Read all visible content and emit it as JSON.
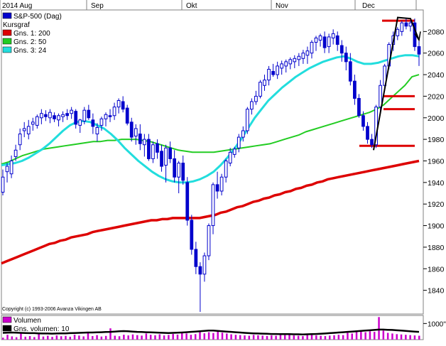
{
  "chart_data": [
    {
      "type": "candlestick",
      "top_axis_labels": [
        "2014 Aug",
        "Sep",
        "Okt",
        "Nov",
        "Dec"
      ],
      "legend": [
        {
          "label": "S&P-500 (Dag)",
          "color": "#0000cc"
        },
        {
          "label": "Kursgraf",
          "color": ""
        },
        {
          "label": "Gns. 1: 200",
          "color": "#dd0000"
        },
        {
          "label": "Gns. 2: 50",
          "color": "#22cc22"
        },
        {
          "label": "Gns. 3: 24",
          "color": "#22dddd"
        }
      ],
      "y_ticks": [
        1840,
        1860,
        1880,
        1900,
        1920,
        1940,
        1960,
        1980,
        2000,
        2020,
        2040,
        2060,
        2080
      ],
      "ylim": [
        1818,
        2100
      ],
      "grid": false,
      "ohlc": [
        [
          1931,
          1952,
          1928,
          1945
        ],
        [
          1950,
          1958,
          1940,
          1955
        ],
        [
          1948,
          1965,
          1944,
          1960
        ],
        [
          1964,
          1975,
          1960,
          1970
        ],
        [
          1975,
          1990,
          1970,
          1985
        ],
        [
          1988,
          1996,
          1982,
          1990
        ],
        [
          1985,
          1998,
          1980,
          1992
        ],
        [
          1994,
          2000,
          1988,
          1996
        ],
        [
          1993,
          2003,
          1990,
          2001
        ],
        [
          2000,
          2008,
          1994,
          2004
        ],
        [
          2003,
          2007,
          1997,
          2001
        ],
        [
          2000,
          2008,
          1995,
          2005
        ],
        [
          2002,
          2005,
          1996,
          1999
        ],
        [
          1998,
          2004,
          1992,
          2002
        ],
        [
          2001,
          2006,
          1996,
          2003
        ],
        [
          2004,
          2008,
          1998,
          2002
        ],
        [
          2004,
          2010,
          1999,
          2007
        ],
        [
          2006,
          2008,
          1990,
          1994
        ],
        [
          1993,
          1999,
          1986,
          1998
        ],
        [
          1997,
          2010,
          1994,
          2007
        ],
        [
          2007,
          2012,
          1998,
          2000
        ],
        [
          1998,
          2004,
          1985,
          1992
        ],
        [
          1985,
          1995,
          1978,
          1991
        ],
        [
          1993,
          2001,
          1988,
          1999
        ],
        [
          1999,
          2005,
          1992,
          2003
        ],
        [
          2002,
          2008,
          1996,
          2001
        ],
        [
          2002,
          2014,
          1998,
          2010
        ],
        [
          2010,
          2018,
          2004,
          2016
        ],
        [
          2015,
          2020,
          2005,
          2008
        ],
        [
          2009,
          2012,
          1993,
          1995
        ],
        [
          1996,
          2000,
          1978,
          1982
        ],
        [
          1983,
          1994,
          1975,
          1990
        ],
        [
          1985,
          1994,
          1970,
          1976
        ],
        [
          1975,
          1985,
          1964,
          1980
        ],
        [
          1980,
          1985,
          1960,
          1962
        ],
        [
          1962,
          1978,
          1958,
          1975
        ],
        [
          1976,
          1980,
          1962,
          1968
        ],
        [
          1969,
          1975,
          1950,
          1955
        ],
        [
          1956,
          1975,
          1940,
          1972
        ],
        [
          1972,
          1978,
          1958,
          1962
        ],
        [
          1962,
          1970,
          1940,
          1945
        ],
        [
          1945,
          1960,
          1930,
          1958
        ],
        [
          1958,
          1965,
          1938,
          1942
        ],
        [
          1940,
          1945,
          1900,
          1905
        ],
        [
          1905,
          1910,
          1873,
          1878
        ],
        [
          1878,
          1885,
          1855,
          1862
        ],
        [
          1862,
          1866,
          1820,
          1855
        ],
        [
          1855,
          1875,
          1848,
          1872
        ],
        [
          1872,
          1902,
          1868,
          1900
        ],
        [
          1900,
          1940,
          1892,
          1938
        ],
        [
          1938,
          1950,
          1925,
          1932
        ],
        [
          1932,
          1948,
          1928,
          1945
        ],
        [
          1945,
          1962,
          1940,
          1960
        ],
        [
          1958,
          1972,
          1955,
          1968
        ],
        [
          1966,
          1973,
          1963,
          1971
        ],
        [
          1972,
          1985,
          1968,
          1982
        ],
        [
          1982,
          1992,
          1978,
          1988
        ],
        [
          1988,
          2010,
          1985,
          2008
        ],
        [
          2008,
          2018,
          2003,
          2015
        ],
        [
          2015,
          2025,
          2012,
          2020
        ],
        [
          2020,
          2035,
          2018,
          2033
        ],
        [
          2030,
          2040,
          2025,
          2035
        ],
        [
          2035,
          2048,
          2030,
          2045
        ],
        [
          2043,
          2050,
          2038,
          2040
        ],
        [
          2040,
          2052,
          2036,
          2048
        ],
        [
          2046,
          2053,
          2040,
          2050
        ],
        [
          2048,
          2054,
          2042,
          2052
        ],
        [
          2050,
          2056,
          2045,
          2054
        ],
        [
          2052,
          2058,
          2046,
          2055
        ],
        [
          2054,
          2060,
          2048,
          2057
        ],
        [
          2055,
          2063,
          2050,
          2060
        ],
        [
          2058,
          2066,
          2050,
          2062
        ],
        [
          2060,
          2072,
          2055,
          2070
        ],
        [
          2070,
          2076,
          2062,
          2074
        ],
        [
          2072,
          2078,
          2066,
          2076
        ],
        [
          2075,
          2080,
          2060,
          2065
        ],
        [
          2066,
          2078,
          2060,
          2075
        ],
        [
          2074,
          2082,
          2068,
          2078
        ],
        [
          2076,
          2080,
          2062,
          2068
        ],
        [
          2067,
          2072,
          2052,
          2060
        ],
        [
          2060,
          2066,
          2044,
          2052
        ],
        [
          2052,
          2060,
          2030,
          2034
        ],
        [
          2034,
          2040,
          2012,
          2018
        ],
        [
          2018,
          2022,
          2000,
          2002
        ],
        [
          2002,
          2006,
          1988,
          1992
        ],
        [
          1992,
          1996,
          1976,
          1980
        ],
        [
          1980,
          1985,
          1972,
          1975
        ],
        [
          1975,
          2012,
          1972,
          2010
        ],
        [
          2010,
          2035,
          2005,
          2030
        ],
        [
          2030,
          2050,
          2025,
          2048
        ],
        [
          2048,
          2070,
          2045,
          2068
        ],
        [
          2068,
          2080,
          2062,
          2076
        ],
        [
          2076,
          2084,
          2072,
          2082
        ],
        [
          2080,
          2090,
          2076,
          2088
        ],
        [
          2088,
          2092,
          2082,
          2085
        ],
        [
          2085,
          2090,
          2080,
          2088
        ],
        [
          2088,
          2092,
          2062,
          2066
        ],
        [
          2066,
          2072,
          2048,
          2059
        ]
      ],
      "series": [
        {
          "name": "Gns. 1: 200",
          "color": "#dd0000",
          "values": [
            1865,
            1867,
            1869,
            1871,
            1873,
            1875,
            1877,
            1879,
            1881,
            1883,
            1884,
            1886,
            1887,
            1889,
            1890,
            1891,
            1892,
            1894,
            1895,
            1896,
            1897,
            1898,
            1899,
            1900,
            1901,
            1902,
            1903,
            1904,
            1905,
            1905,
            1906,
            1906,
            1907,
            1907,
            1907,
            1907,
            1907,
            1907,
            1908,
            1909,
            1910,
            1912,
            1913,
            1915,
            1917,
            1918,
            1920,
            1922,
            1923,
            1925,
            1926,
            1928,
            1929,
            1931,
            1932,
            1934,
            1935,
            1937,
            1938,
            1940,
            1941,
            1943,
            1944,
            1945,
            1946,
            1947,
            1948,
            1949,
            1950,
            1951,
            1952,
            1953,
            1954,
            1955,
            1956,
            1957,
            1958,
            1959,
            1960
          ]
        },
        {
          "name": "Gns. 2: 50",
          "color": "#22cc22",
          "values": [
            1957,
            1959,
            1962,
            1965,
            1967,
            1969,
            1971,
            1972,
            1973,
            1974,
            1975,
            1976,
            1977,
            1978,
            1978,
            1979,
            1979,
            1980,
            1980,
            1980,
            1979,
            1978,
            1976,
            1974,
            1972,
            1970,
            1969,
            1968,
            1968,
            1968,
            1968,
            1969,
            1970,
            1971,
            1972,
            1973,
            1974,
            1975,
            1976,
            1978,
            1980,
            1982,
            1984,
            1987,
            1989,
            1991,
            1993,
            1995,
            1997,
            1999,
            2001,
            2003,
            2005,
            2008,
            2012,
            2018,
            2024,
            2030,
            2038,
            2040
          ]
        },
        {
          "name": "Gns. 3: 24",
          "color": "#22dddd",
          "values": [
            1956,
            1957,
            1958,
            1960,
            1963,
            1967,
            1971,
            1976,
            1982,
            1988,
            1993,
            1996,
            1997,
            1996,
            1993,
            1990,
            1985,
            1979,
            1972,
            1966,
            1960,
            1955,
            1950,
            1946,
            1943,
            1941,
            1940,
            1940,
            1941,
            1943,
            1946,
            1950,
            1956,
            1963,
            1971,
            1980,
            1990,
            2000,
            2008,
            2016,
            2022,
            2028,
            2033,
            2038,
            2042,
            2046,
            2049,
            2052,
            2054,
            2056,
            2057,
            2055,
            2052,
            2050,
            2050,
            2051,
            2053,
            2055,
            2057,
            2058,
            2058,
            2057
          ]
        }
      ],
      "horizontal_levels": [
        {
          "value": 2090,
          "color": "#dd0000"
        },
        {
          "value": 2020,
          "color": "#dd0000"
        },
        {
          "value": 2008,
          "color": "#dd0000"
        },
        {
          "value": 1974,
          "color": "#dd0000"
        }
      ],
      "copyright": "Copyright (c) 1993-2006 Avanza Vikingen AB"
    },
    {
      "type": "bar",
      "legend": [
        {
          "label": "Volumen",
          "color": "#cc00cc"
        },
        {
          "label": "Gns. volumen: 10",
          "color": "#000000"
        }
      ],
      "y_ticks": [
        "1000''"
      ],
      "ylim": [
        0,
        1500
      ],
      "values": [
        120,
        300,
        200,
        150,
        400,
        180,
        220,
        160,
        350,
        190,
        240,
        170,
        260,
        210,
        230,
        180,
        300,
        250,
        200,
        450,
        220,
        280,
        190,
        230,
        700,
        240,
        210,
        300,
        260,
        320,
        280,
        250,
        380,
        300,
        270,
        330,
        260,
        290,
        350,
        310,
        420,
        380,
        300,
        340,
        520,
        390,
        460,
        410,
        560,
        430,
        380,
        330,
        300,
        280,
        260,
        240,
        290,
        270,
        250,
        230,
        260,
        240,
        300,
        280,
        320,
        260,
        240,
        220,
        280,
        300,
        260,
        240,
        220,
        250,
        270,
        300,
        280,
        420,
        380,
        500,
        580,
        460,
        520,
        480,
        1400,
        560,
        420,
        380,
        340,
        320,
        300,
        280,
        260,
        240
      ],
      "average": [
        420,
        430,
        440,
        430,
        420,
        410,
        400,
        400,
        390,
        380,
        380,
        370,
        380,
        390,
        390,
        400,
        410,
        420,
        430,
        440,
        440,
        450,
        460,
        470,
        480,
        500,
        520,
        530,
        520,
        500,
        480,
        470,
        460,
        450,
        440,
        430,
        420,
        410,
        420,
        430,
        440,
        460,
        480,
        500,
        520,
        540,
        560,
        560,
        540,
        520,
        500,
        480,
        460,
        440,
        420,
        400,
        390,
        380,
        370,
        360,
        350,
        350,
        340,
        340,
        340,
        330,
        330,
        320,
        330,
        340,
        350,
        360,
        380,
        400,
        420,
        440,
        460,
        480,
        500,
        520,
        540,
        560,
        580,
        600,
        620,
        620,
        610,
        600,
        580,
        560,
        540,
        520,
        500,
        480
      ]
    }
  ]
}
